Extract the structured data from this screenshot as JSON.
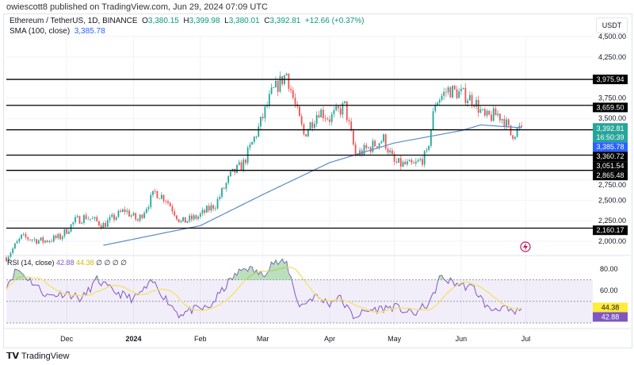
{
  "publisher": "owiescott8 published on TradingView.com, Jun 29, 2024 07:09 UTC",
  "legend": {
    "symbol": "Ethereum / TetherUS, 1D, BINANCE",
    "o_label": "O",
    "o": "3,380.15",
    "h_label": "H",
    "h": "3,399.98",
    "l_label": "L",
    "l": "3,380.01",
    "c_label": "C",
    "c": "3,392.81",
    "change": "+12.66 (+0.37%)",
    "sma_label": "SMA (100, close)",
    "sma": "3,385.78"
  },
  "currency": "USDT",
  "rsi_legend": {
    "label": "RSI (14, close)",
    "rsi": "42.88",
    "rsi_ma": "44.38",
    "extras": "∅ ∅ ∅ ∅"
  },
  "countdown": "16:50:39",
  "footer": "TradingView",
  "colors": {
    "up": "#26a69a",
    "down": "#ef5350",
    "sma": "#5b8ac9",
    "rsi": "#7e57c2",
    "rsi_ma": "#f3e27a",
    "level": "#000000"
  },
  "chart_data": [
    {
      "type": "candlestick",
      "title": "Ethereum / TetherUS, 1D, BINANCE",
      "ylim": [
        1900,
        4600
      ],
      "y_ticks": [
        "4,500.00",
        "4,250.00",
        "3,750.00",
        "3,500.00",
        "2,750.00",
        "2,500.00",
        "2,250.00",
        "2,000.00"
      ],
      "y_tick_values": [
        4500,
        4250,
        3750,
        3500,
        2750,
        2500,
        2250,
        2000
      ],
      "x_ticks": [
        "Dec",
        "2024",
        "Feb",
        "Mar",
        "Apr",
        "May",
        "Jun",
        "Jul"
      ],
      "x_tick_dates": [
        "2023-12-01",
        "2024-01-01",
        "2024-02-01",
        "2024-03-01",
        "2024-04-01",
        "2024-05-01",
        "2024-06-01",
        "2024-07-01"
      ],
      "x_range": [
        "2023-11-03",
        "2024-07-28"
      ],
      "close_path": [
        [
          "2023-11-03",
          1800
        ],
        [
          "2023-11-10",
          2050
        ],
        [
          "2023-11-20",
          2000
        ],
        [
          "2023-11-28",
          2050
        ],
        [
          "2023-12-05",
          2250
        ],
        [
          "2023-12-10",
          2300
        ],
        [
          "2023-12-18",
          2200
        ],
        [
          "2023-12-28",
          2380
        ],
        [
          "2024-01-03",
          2250
        ],
        [
          "2024-01-11",
          2600
        ],
        [
          "2024-01-16",
          2520
        ],
        [
          "2024-01-23",
          2230
        ],
        [
          "2024-01-31",
          2300
        ],
        [
          "2024-02-08",
          2450
        ],
        [
          "2024-02-15",
          2800
        ],
        [
          "2024-02-21",
          2950
        ],
        [
          "2024-02-28",
          3380
        ],
        [
          "2024-03-05",
          3800
        ],
        [
          "2024-03-12",
          4050
        ],
        [
          "2024-03-16",
          3650
        ],
        [
          "2024-03-20",
          3300
        ],
        [
          "2024-03-27",
          3600
        ],
        [
          "2024-04-01",
          3500
        ],
        [
          "2024-04-08",
          3650
        ],
        [
          "2024-04-13",
          3050
        ],
        [
          "2024-04-20",
          3150
        ],
        [
          "2024-04-26",
          3250
        ],
        [
          "2024-05-01",
          2950
        ],
        [
          "2024-05-10",
          2920
        ],
        [
          "2024-05-16",
          3050
        ],
        [
          "2024-05-20",
          3700
        ],
        [
          "2024-05-26",
          3850
        ],
        [
          "2024-06-01",
          3800
        ],
        [
          "2024-06-07",
          3720
        ],
        [
          "2024-06-12",
          3500
        ],
        [
          "2024-06-18",
          3550
        ],
        [
          "2024-06-21",
          3480
        ],
        [
          "2024-06-24",
          3300
        ],
        [
          "2024-06-29",
          3392.81
        ]
      ],
      "sma": {
        "name": "SMA (100, close)",
        "values": [
          [
            "2023-12-18",
            1950
          ],
          [
            "2024-01-15",
            2100
          ],
          [
            "2024-02-01",
            2190
          ],
          [
            "2024-03-01",
            2570
          ],
          [
            "2024-04-01",
            2960
          ],
          [
            "2024-05-01",
            3200
          ],
          [
            "2024-06-01",
            3350
          ],
          [
            "2024-06-10",
            3420
          ],
          [
            "2024-06-29",
            3385.78
          ]
        ]
      },
      "levels": [
        {
          "value": 3975.94,
          "label": "3,975.94"
        },
        {
          "value": 3659.5,
          "label": "3,659.50"
        },
        {
          "value": 3360.72,
          "label": "3,360.72"
        },
        {
          "value": 3051.54,
          "label": "3,051.54"
        },
        {
          "value": 2865.48,
          "label": "2,865.48"
        },
        {
          "value": 2160.17,
          "label": "2,160.17"
        }
      ],
      "last_price": {
        "value": 3392.81,
        "label": "3,392.81"
      },
      "sma_last": {
        "value": 3385.78,
        "label": "3,385.78"
      }
    },
    {
      "type": "line",
      "title": "RSI (14, close)",
      "ylim": [
        20,
        90
      ],
      "bands": [
        30,
        70
      ],
      "y_ticks": [
        "80.00",
        "60.00"
      ],
      "y_tick_values": [
        80,
        60
      ],
      "series": [
        {
          "name": "RSI",
          "values": [
            [
              "2023-11-03",
              65
            ],
            [
              "2023-11-08",
              80
            ],
            [
              "2023-11-15",
              68
            ],
            [
              "2023-11-22",
              55
            ],
            [
              "2023-12-01",
              58
            ],
            [
              "2023-12-08",
              52
            ],
            [
              "2023-12-15",
              70
            ],
            [
              "2023-12-22",
              60
            ],
            [
              "2024-01-01",
              52
            ],
            [
              "2024-01-10",
              68
            ],
            [
              "2024-01-15",
              55
            ],
            [
              "2024-01-22",
              38
            ],
            [
              "2024-01-28",
              42
            ],
            [
              "2024-02-05",
              44
            ],
            [
              "2024-02-15",
              70
            ],
            [
              "2024-02-22",
              82
            ],
            [
              "2024-03-01",
              74
            ],
            [
              "2024-03-05",
              86
            ],
            [
              "2024-03-12",
              85
            ],
            [
              "2024-03-18",
              45
            ],
            [
              "2024-03-25",
              55
            ],
            [
              "2024-04-01",
              48
            ],
            [
              "2024-04-05",
              55
            ],
            [
              "2024-04-12",
              36
            ],
            [
              "2024-04-20",
              42
            ],
            [
              "2024-05-01",
              45
            ],
            [
              "2024-05-10",
              38
            ],
            [
              "2024-05-18",
              50
            ],
            [
              "2024-05-22",
              72
            ],
            [
              "2024-06-01",
              65
            ],
            [
              "2024-06-07",
              62
            ],
            [
              "2024-06-14",
              42
            ],
            [
              "2024-06-20",
              45
            ],
            [
              "2024-06-25",
              38
            ],
            [
              "2024-06-29",
              42.88
            ]
          ]
        }
      ],
      "rsi_last": {
        "value": 42.88,
        "label": "42.88"
      },
      "ma_last": {
        "value": 44.38,
        "label": "44.38"
      }
    }
  ]
}
